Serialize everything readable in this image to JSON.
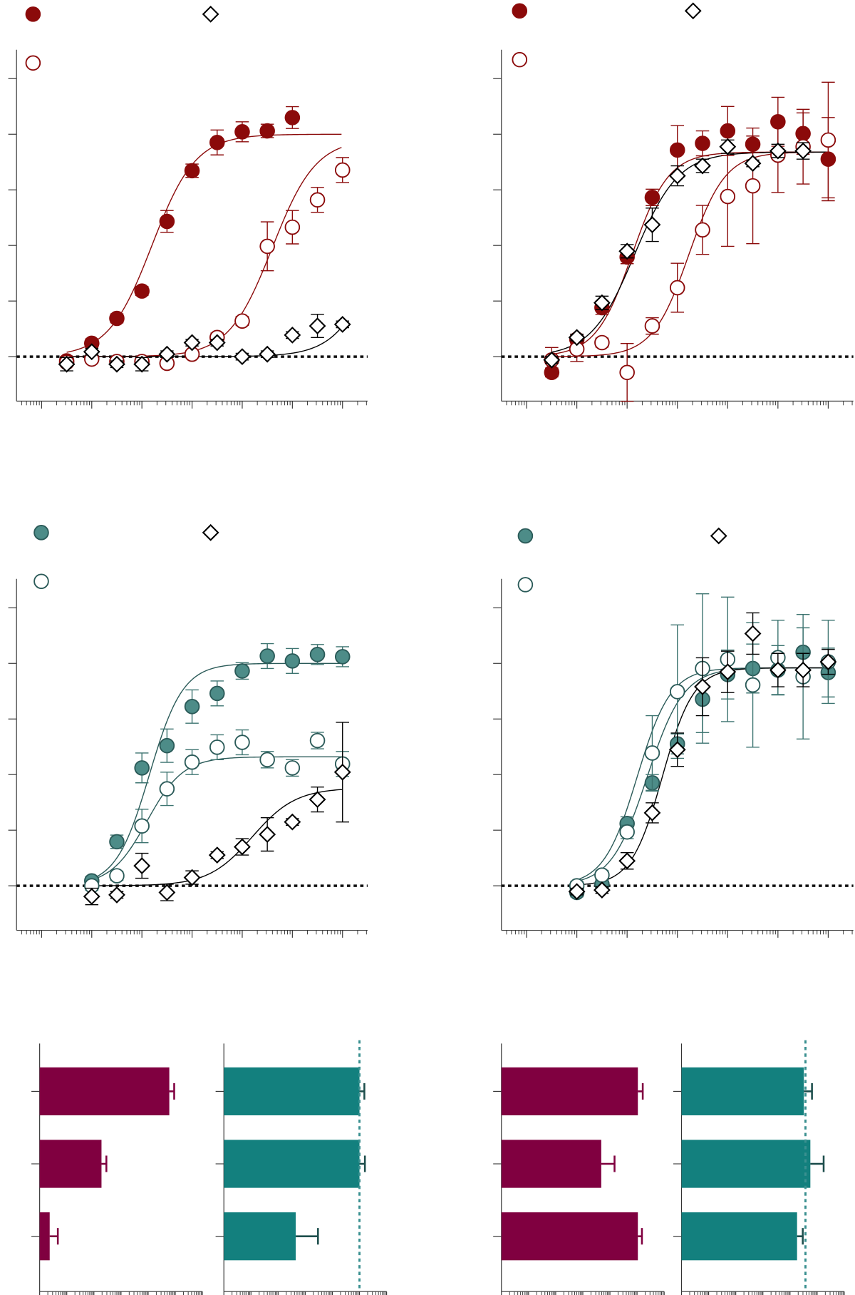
{
  "chart_data": [
    {
      "type": "scatter",
      "x": [
        -12.5,
        -12,
        -11.5,
        -11,
        -10.5,
        -10,
        -9.5,
        -9,
        -8.5,
        -8,
        -7.5,
        -7
      ],
      "xlim": [
        -13.5,
        -6.5
      ],
      "xticks": [
        -13,
        -12,
        -11,
        -10,
        -9,
        -8,
        -7
      ],
      "ylim": [
        -20,
        138
      ],
      "yticks": [
        0,
        25,
        50,
        75,
        100,
        125
      ],
      "hline": 0,
      "series": [
        {
          "marker": "circle-filled",
          "color": "#8b0a0a",
          "fill": "#8b0a0a",
          "values": [
            -1.9,
            6,
            17.2,
            29.5,
            60.8,
            83.6,
            96.3,
            101.1,
            101.5,
            107.5,
            null,
            null
          ],
          "errors": [
            2,
            2,
            2,
            2,
            4.9,
            3,
            5.6,
            4.5,
            3,
            4.9,
            null,
            null
          ],
          "fit": {
            "bottom": 0,
            "top": 100,
            "logec50": -10.8,
            "hill": 1
          }
        },
        {
          "marker": "circle-open",
          "color": "#8b0a0a",
          "values": [
            -2.6,
            -1.1,
            -2.2,
            -2.2,
            -3,
            1.1,
            8.6,
            16,
            49.6,
            58.2,
            70.5,
            83.9
          ],
          "errors": [
            1.5,
            1.5,
            1.5,
            1.5,
            1.5,
            1.5,
            2,
            2,
            11,
            7.5,
            5.6,
            5.6
          ],
          "fit": {
            "bottom": 0,
            "top": 98,
            "logec50": -8.4,
            "hill": 1
          }
        },
        {
          "marker": "diamond",
          "color": "#000000",
          "values": [
            -3.4,
            2.2,
            -3.4,
            -3.4,
            1.1,
            6.3,
            6.3,
            0,
            1.1,
            9.7,
            13.8,
            14.5
          ],
          "errors": [
            3,
            1.5,
            1.5,
            3,
            1.5,
            1.5,
            1.5,
            1.5,
            1.5,
            1.5,
            5.2,
            1.5
          ],
          "fit": {
            "bottom": 0,
            "top": 100,
            "logec50": -6.2,
            "hill": 1
          }
        }
      ]
    },
    {
      "type": "scatter",
      "x": [
        -12.5,
        -12,
        -11.5,
        -11,
        -10.5,
        -10,
        -9.5,
        -9,
        -8.5,
        -8,
        -7.5,
        -7
      ],
      "xlim": [
        -13.5,
        -6.5
      ],
      "xticks": [
        -13,
        -12,
        -11,
        -10,
        -9,
        -8,
        -7
      ],
      "ylim": [
        -20,
        138
      ],
      "yticks": [
        0,
        25,
        50,
        75,
        100,
        125
      ],
      "hline": 0,
      "series": [
        {
          "marker": "circle-filled",
          "color": "#8b0a0a",
          "fill": "#8b0a0a",
          "values": [
            -7.1,
            7.8,
            22,
            44.8,
            71.6,
            92.9,
            95.9,
            101.5,
            95.5,
            105.6,
            100.3,
            88.8
          ],
          "errors": [
            2,
            2,
            3,
            3,
            3.7,
            11,
            5.6,
            11,
            3.7,
            11,
            9.3,
            18.7
          ],
          "fit": {
            "bottom": 0,
            "top": 92,
            "logec50": -10.9,
            "hill": 1.2
          }
        },
        {
          "marker": "circle-open",
          "color": "#8b0a0a",
          "values": [
            -1.5,
            3.4,
            6.3,
            -7.1,
            13.8,
            31,
            57,
            72,
            76.8,
            90.6,
            94.4,
            97.4
          ],
          "errors": [
            5.6,
            5.6,
            2,
            13,
            3.7,
            11,
            11,
            22.4,
            26,
            16.8,
            16.8,
            26
          ],
          "fit": {
            "bottom": 0,
            "top": 92,
            "logec50": -9.77,
            "hill": 1.2
          }
        },
        {
          "marker": "diamond",
          "color": "#000000",
          "values": [
            -1.5,
            8.6,
            24.2,
            47.4,
            59.3,
            81.3,
            85.8,
            94.4,
            86.9,
            92.5,
            92.5,
            null
          ],
          "errors": [
            1.5,
            1.5,
            3,
            3,
            7.5,
            4.5,
            3,
            3,
            1.5,
            3,
            3.7,
            null
          ],
          "fit": {
            "bottom": 0,
            "top": 92,
            "logec50": -10.85,
            "hill": 1
          }
        }
      ]
    },
    {
      "type": "scatter",
      "x": [
        -12,
        -11.5,
        -11,
        -10.5,
        -10,
        -9.5,
        -9,
        -8.5,
        -8,
        -7.5,
        -7
      ],
      "xlim": [
        -13.5,
        -6.5
      ],
      "xticks": [
        -13,
        -12,
        -11,
        -10,
        -9,
        -8,
        -7
      ],
      "ylim": [
        -20,
        138
      ],
      "yticks": [
        0,
        25,
        50,
        75,
        100,
        125
      ],
      "hline": 0,
      "series": [
        {
          "marker": "circle-filled",
          "color": "#2a5a58",
          "fill": "#4d8c88",
          "values": [
            2.2,
            19.8,
            53,
            63,
            80.6,
            86.5,
            96.6,
            103.3,
            101.1,
            104,
            103
          ],
          "errors": [
            2,
            3,
            6.7,
            7.5,
            7.5,
            5.6,
            3.7,
            5.6,
            5.6,
            4.5,
            4.5
          ],
          "fit": {
            "bottom": 0,
            "top": 100,
            "logec50": -10.85,
            "hill": 1.3
          }
        },
        {
          "marker": "circle-open",
          "color": "#2a5a58",
          "values": [
            0,
            4.5,
            26.9,
            43.6,
            55.6,
            62.3,
            64.5,
            56.7,
            53,
            65.3,
            54.8
          ],
          "errors": [
            2,
            2,
            7.5,
            7.5,
            5.6,
            5.6,
            5.6,
            3.7,
            3.7,
            3.7,
            5.6
          ],
          "fit": {
            "bottom": 0,
            "top": 58,
            "logec50": -10.9,
            "hill": 1.2
          }
        },
        {
          "marker": "diamond",
          "color": "#000000",
          "values": [
            -4.8,
            -4.1,
            9,
            -3,
            3.7,
            13.8,
            17.5,
            23.1,
            28.7,
            38.8,
            51.1
          ],
          "errors": [
            3.7,
            1.5,
            5.6,
            3.7,
            3,
            1.5,
            3.7,
            7.5,
            1.5,
            5.6,
            22.4
          ],
          "fit": {
            "bottom": 0,
            "top": 44,
            "logec50": -8.8,
            "hill": 1
          }
        }
      ]
    },
    {
      "type": "scatter",
      "x": [
        -12,
        -11.5,
        -11,
        -10.5,
        -10,
        -9.5,
        -9,
        -8.5,
        -8,
        -7.5,
        -7
      ],
      "xlim": [
        -13.5,
        -6.5
      ],
      "xticks": [
        -13,
        -12,
        -11,
        -10,
        -9,
        -8,
        -7
      ],
      "ylim": [
        -20,
        138
      ],
      "yticks": [
        0,
        25,
        50,
        75,
        100,
        125
      ],
      "hline": 0,
      "series": [
        {
          "marker": "circle-filled",
          "color": "#2a5a58",
          "fill": "#4d8c88",
          "values": [
            -3,
            0.7,
            28,
            46.3,
            63.8,
            83.9,
            95,
            97.7,
            97,
            105,
            95.9
          ],
          "errors": [
            2,
            2,
            3,
            3.7,
            4.5,
            15,
            11,
            11,
            11,
            11,
            11
          ],
          "fit": {
            "bottom": 0,
            "top": 98,
            "logec50": -10.6,
            "hill": 1.2
          }
        },
        {
          "marker": "circle-open",
          "color": "#2a5a58",
          "values": [
            0,
            4.8,
            24.2,
            59.7,
            87.3,
            97.7,
            101.8,
            90.3,
            102.6,
            94,
            100.7
          ],
          "errors": [
            2,
            2,
            3,
            16.8,
            30,
            33.6,
            28,
            28,
            16.8,
            28,
            18.7
          ],
          "fit": {
            "bottom": 0,
            "top": 98,
            "logec50": -10.8,
            "hill": 1.3
          }
        },
        {
          "marker": "diamond",
          "color": "#000000",
          "values": [
            -2.6,
            -1.9,
            11.2,
            32.8,
            61.2,
            89.5,
            96.2,
            113.4,
            97,
            97,
            100.7
          ],
          "errors": [
            1.5,
            1.5,
            3.7,
            4.5,
            7.5,
            13,
            9.3,
            9.3,
            7.5,
            7.5,
            5.6
          ],
          "fit": {
            "bottom": 0,
            "top": 98,
            "logec50": -10.3,
            "hill": 1.4
          }
        }
      ]
    },
    {
      "type": "bar",
      "orientation": "horizontal",
      "categories": [
        null,
        null,
        null
      ],
      "values": [
        4.78,
        2.28,
        0.37
      ],
      "errors": [
        0.18,
        0.18,
        0.3
      ],
      "color": "#800040",
      "xlim": [
        0,
        6
      ],
      "xticks": [
        0,
        1,
        2,
        3,
        4,
        5,
        6
      ]
    },
    {
      "type": "bar",
      "orientation": "horizontal",
      "categories": [
        null,
        null,
        null
      ],
      "values": [
        5.0,
        5.0,
        2.65
      ],
      "errors": [
        0.18,
        0.2,
        0.82
      ],
      "color": "#13807e",
      "xlim": [
        0,
        6
      ],
      "xticks": [
        0,
        1,
        2,
        3,
        4,
        5,
        6
      ],
      "vline": 5.0
    },
    {
      "type": "bar",
      "orientation": "horizontal",
      "categories": [
        null,
        null,
        null
      ],
      "values": [
        5.03,
        3.68,
        5.03
      ],
      "errors": [
        0.18,
        0.49,
        0.15
      ],
      "color": "#800040",
      "xlim": [
        0,
        6
      ],
      "xticks": [
        0,
        1,
        2,
        3,
        4,
        5,
        6
      ]
    },
    {
      "type": "bar",
      "orientation": "horizontal",
      "categories": [
        null,
        null,
        null
      ],
      "values": [
        4.51,
        4.75,
        4.26
      ],
      "errors": [
        0.3,
        0.49,
        0.21
      ],
      "color": "#13807e",
      "xlim": [
        0,
        6
      ],
      "xticks": [
        0,
        1,
        2,
        3,
        4,
        5,
        6
      ],
      "vline": 4.57
    }
  ]
}
